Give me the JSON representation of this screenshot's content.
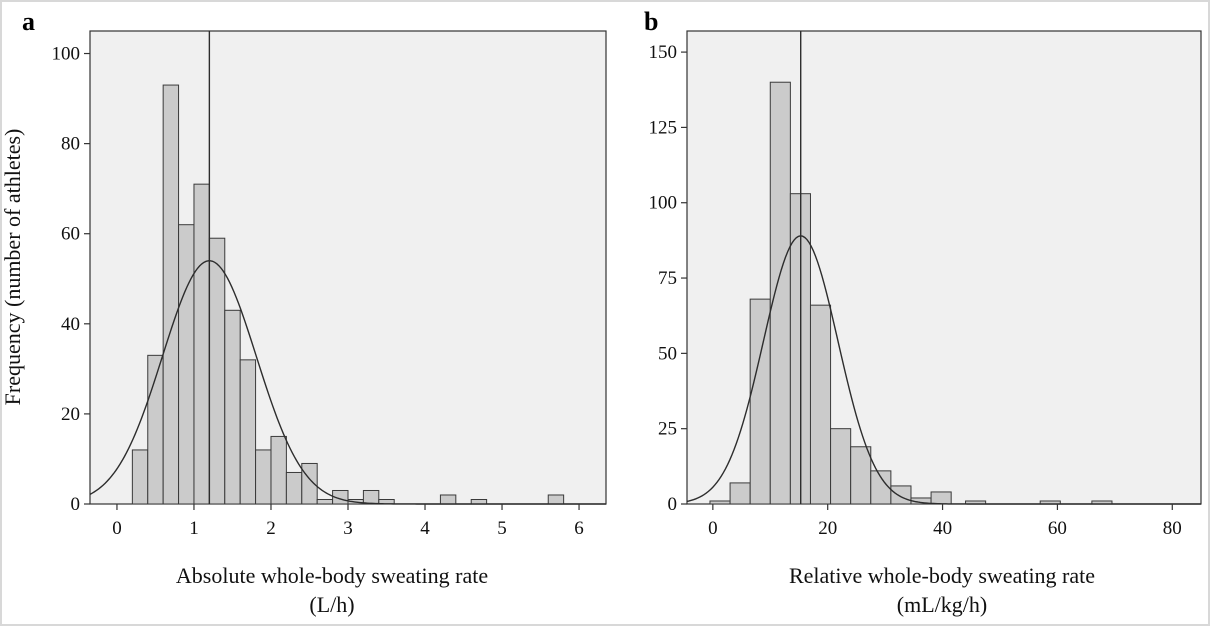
{
  "chart_data": [
    {
      "panel": "a",
      "type": "bar",
      "xlabel": "Absolute whole-body sweating rate",
      "xunit": "(L/h)",
      "ylabel": "Frequency (number of athletes)",
      "xlim": [
        -0.35,
        6.35
      ],
      "ylim": [
        0,
        105
      ],
      "xticks": [
        0,
        1,
        2,
        3,
        4,
        5,
        6
      ],
      "yticks": [
        0,
        20,
        40,
        60,
        80,
        100
      ],
      "bin_width": 0.2,
      "bins": [
        {
          "x": 0.2,
          "count": 12
        },
        {
          "x": 0.4,
          "count": 33
        },
        {
          "x": 0.6,
          "count": 93
        },
        {
          "x": 0.8,
          "count": 62
        },
        {
          "x": 1.0,
          "count": 71
        },
        {
          "x": 1.2,
          "count": 59
        },
        {
          "x": 1.4,
          "count": 43
        },
        {
          "x": 1.6,
          "count": 32
        },
        {
          "x": 1.8,
          "count": 12
        },
        {
          "x": 2.0,
          "count": 15
        },
        {
          "x": 2.2,
          "count": 7
        },
        {
          "x": 2.4,
          "count": 9
        },
        {
          "x": 2.6,
          "count": 1
        },
        {
          "x": 2.8,
          "count": 3
        },
        {
          "x": 3.0,
          "count": 1
        },
        {
          "x": 3.2,
          "count": 3
        },
        {
          "x": 3.4,
          "count": 1
        },
        {
          "x": 4.2,
          "count": 2
        },
        {
          "x": 4.6,
          "count": 1
        },
        {
          "x": 5.6,
          "count": 2
        }
      ],
      "normal_curve": {
        "mean": 1.2,
        "sd": 0.61,
        "peak": 54
      },
      "mean_line": 1.2,
      "grid": false
    },
    {
      "panel": "b",
      "type": "bar",
      "xlabel": "Relative whole-body sweating rate",
      "xunit": "(mL/kg/h)",
      "ylabel": "",
      "xlim": [
        -4.5,
        85
      ],
      "ylim": [
        0,
        157
      ],
      "xticks": [
        0,
        20,
        40,
        60,
        80
      ],
      "yticks": [
        0,
        25,
        50,
        75,
        100,
        125,
        150
      ],
      "bin_width": 3.5,
      "bins": [
        {
          "x": -0.5,
          "count": 1
        },
        {
          "x": 3.0,
          "count": 7
        },
        {
          "x": 6.5,
          "count": 68
        },
        {
          "x": 10.0,
          "count": 140
        },
        {
          "x": 13.5,
          "count": 103
        },
        {
          "x": 17.0,
          "count": 66
        },
        {
          "x": 20.5,
          "count": 25
        },
        {
          "x": 24.0,
          "count": 19
        },
        {
          "x": 27.5,
          "count": 11
        },
        {
          "x": 31.0,
          "count": 6
        },
        {
          "x": 34.5,
          "count": 2
        },
        {
          "x": 38.0,
          "count": 4
        },
        {
          "x": 44.0,
          "count": 1
        },
        {
          "x": 57.0,
          "count": 1
        },
        {
          "x": 66.0,
          "count": 1
        }
      ],
      "normal_curve": {
        "mean": 15.3,
        "sd": 6.5,
        "peak": 89
      },
      "mean_line": 15.3,
      "grid": false
    }
  ]
}
